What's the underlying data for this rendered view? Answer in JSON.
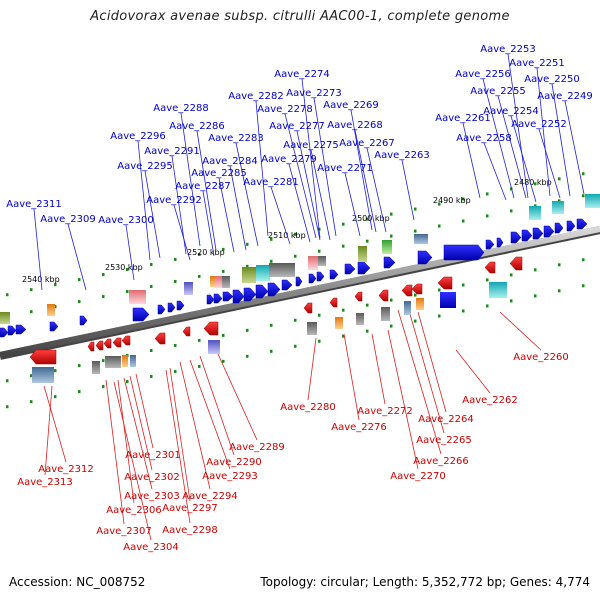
{
  "title": "Acidovorax avenae subsp. citrulli AAC00-1, complete genome",
  "footer": {
    "accession": "Accession: NC_008752",
    "topology": "Topology: circular; Length: 5,352,772 bp; Genes: 4,774"
  },
  "colors": {
    "forward_label": "#0000cc",
    "reverse_label": "#cc0000",
    "forward_gene": "#1010ee",
    "reverse_gene": "#ee1010",
    "backbone": "#7a7a7a",
    "tick": "#1a8a1a"
  },
  "scale": [
    {
      "text": "2540 kbp"
    },
    {
      "text": "2530 kbp"
    },
    {
      "text": "2520 kbp"
    },
    {
      "text": "2510 kbp"
    },
    {
      "text": "2500 kbp"
    },
    {
      "text": "2490 kbp"
    },
    {
      "text": "2480 kbp"
    }
  ],
  "forward_labels": [
    {
      "name": "Aave_2253"
    },
    {
      "name": "Aave_2251"
    },
    {
      "name": "Aave_2256"
    },
    {
      "name": "Aave_2250"
    },
    {
      "name": "Aave_2274"
    },
    {
      "name": "Aave_2255"
    },
    {
      "name": "Aave_2249"
    },
    {
      "name": "Aave_2282"
    },
    {
      "name": "Aave_2273"
    },
    {
      "name": "Aave_2288"
    },
    {
      "name": "Aave_2278"
    },
    {
      "name": "Aave_2269"
    },
    {
      "name": "Aave_2254"
    },
    {
      "name": "Aave_2261"
    },
    {
      "name": "Aave_2252"
    },
    {
      "name": "Aave_2286"
    },
    {
      "name": "Aave_2277"
    },
    {
      "name": "Aave_2268"
    },
    {
      "name": "Aave_2296"
    },
    {
      "name": "Aave_2283"
    },
    {
      "name": "Aave_2258"
    },
    {
      "name": "Aave_2275"
    },
    {
      "name": "Aave_2267"
    },
    {
      "name": "Aave_2291"
    },
    {
      "name": "Aave_2263"
    },
    {
      "name": "Aave_2284"
    },
    {
      "name": "Aave_2279"
    },
    {
      "name": "Aave_2295"
    },
    {
      "name": "Aave_2271"
    },
    {
      "name": "Aave_2285"
    },
    {
      "name": "Aave_2287"
    },
    {
      "name": "Aave_2281"
    },
    {
      "name": "Aave_2292"
    },
    {
      "name": "Aave_2311"
    },
    {
      "name": "Aave_2309"
    },
    {
      "name": "Aave_2300"
    }
  ],
  "reverse_labels": [
    {
      "name": "Aave_2260"
    },
    {
      "name": "Aave_2262"
    },
    {
      "name": "Aave_2280"
    },
    {
      "name": "Aave_2272"
    },
    {
      "name": "Aave_2264"
    },
    {
      "name": "Aave_2276"
    },
    {
      "name": "Aave_2265"
    },
    {
      "name": "Aave_2289"
    },
    {
      "name": "Aave_2301"
    },
    {
      "name": "Aave_2266"
    },
    {
      "name": "Aave_2290"
    },
    {
      "name": "Aave_2312"
    },
    {
      "name": "Aave_2302"
    },
    {
      "name": "Aave_2293"
    },
    {
      "name": "Aave_2270"
    },
    {
      "name": "Aave_2313"
    },
    {
      "name": "Aave_2294"
    },
    {
      "name": "Aave_2303"
    },
    {
      "name": "Aave_2306"
    },
    {
      "name": "Aave_2297"
    },
    {
      "name": "Aave_2307"
    },
    {
      "name": "Aave_2298"
    },
    {
      "name": "Aave_2304"
    }
  ]
}
